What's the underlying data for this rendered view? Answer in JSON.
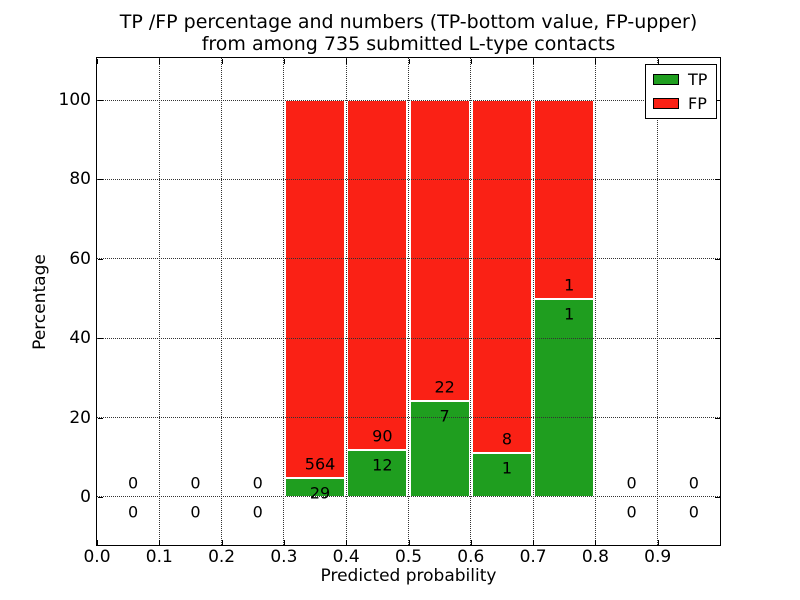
{
  "chart_data": {
    "type": "bar",
    "stacked": true,
    "title": "TP /FP percentage and numbers (TP-bottom value, FP-upper)\nfrom among 735 submitted L-type contacts",
    "xlabel": "Predicted probability",
    "ylabel": "Percentage",
    "xlim": [
      0.0,
      1.0
    ],
    "ylim": [
      -12.1,
      110.6
    ],
    "xtick_labels": [
      "0.0",
      "0.1",
      "0.2",
      "0.3",
      "0.4",
      "0.5",
      "0.6",
      "0.7",
      "0.8",
      "0.9"
    ],
    "ytick_values": [
      0,
      20,
      40,
      60,
      80,
      100
    ],
    "ytick_labels": [
      "0",
      "20",
      "40",
      "60",
      "80",
      "100"
    ],
    "grid_style": "dotted",
    "total_contacts": 735,
    "colors": {
      "tp": "#1f9e1f",
      "fp": "#fa2115",
      "bar_edge": "#ffffff",
      "grid": "#333333",
      "text": "#000000",
      "background": "#ffffff"
    },
    "legend": {
      "position": "upper-right",
      "items": [
        {
          "label": "TP",
          "color": "#1f9e1f"
        },
        {
          "label": "FP",
          "color": "#fa2115"
        }
      ]
    },
    "bins": [
      {
        "range": [
          0.0,
          0.1
        ],
        "tp": 0,
        "fp": 0
      },
      {
        "range": [
          0.1,
          0.2
        ],
        "tp": 0,
        "fp": 0
      },
      {
        "range": [
          0.2,
          0.3
        ],
        "tp": 0,
        "fp": 0
      },
      {
        "range": [
          0.3,
          0.4
        ],
        "tp": 29,
        "fp": 564,
        "tp_pct": 4.89,
        "fp_pct": 95.11
      },
      {
        "range": [
          0.4,
          0.5
        ],
        "tp": 12,
        "fp": 90,
        "tp_pct": 11.76,
        "fp_pct": 88.24
      },
      {
        "range": [
          0.5,
          0.6
        ],
        "tp": 7,
        "fp": 22,
        "tp_pct": 24.14,
        "fp_pct": 75.86
      },
      {
        "range": [
          0.6,
          0.7
        ],
        "tp": 1,
        "fp": 8,
        "tp_pct": 11.11,
        "fp_pct": 88.89
      },
      {
        "range": [
          0.7,
          0.8
        ],
        "tp": 1,
        "fp": 1,
        "tp_pct": 50.0,
        "fp_pct": 50.0
      },
      {
        "range": [
          0.8,
          0.9
        ],
        "tp": 0,
        "fp": 0
      },
      {
        "range": [
          0.9,
          1.0
        ],
        "tp": 0,
        "fp": 0
      }
    ]
  }
}
